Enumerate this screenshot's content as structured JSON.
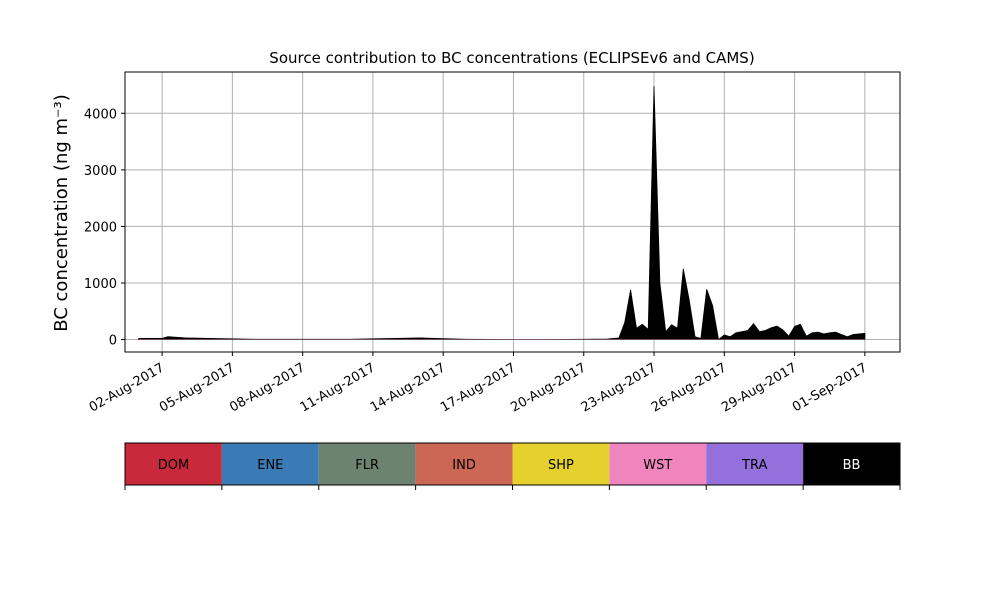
{
  "chart_data": {
    "type": "area",
    "title": "Source contribution to BC concentrations (ECLIPSEv6 and CAMS)",
    "ylabel": "BC concentration (ng m⁻³)",
    "xlabel": "",
    "ylim": [
      -220,
      4730
    ],
    "xlim": [
      "2017-07-31T10:00",
      "2017-09-02T12:00"
    ],
    "yticks": [
      0,
      1000,
      2000,
      3000,
      4000
    ],
    "ytick_labels": [
      "0",
      "1000",
      "2000",
      "3000",
      "4000"
    ],
    "xticks": [
      "2017-08-02",
      "2017-08-05",
      "2017-08-08",
      "2017-08-11",
      "2017-08-14",
      "2017-08-17",
      "2017-08-20",
      "2017-08-23",
      "2017-08-26",
      "2017-08-29",
      "2017-09-01"
    ],
    "xtick_labels": [
      "02-Aug-2017",
      "05-Aug-2017",
      "08-Aug-2017",
      "11-Aug-2017",
      "14-Aug-2017",
      "17-Aug-2017",
      "20-Aug-2017",
      "23-Aug-2017",
      "26-Aug-2017",
      "29-Aug-2017",
      "01-Sep-2017"
    ],
    "grid": true,
    "legend_position": "bottom",
    "series": [
      {
        "name": "BB",
        "color": "#000000",
        "x": [
          "2017-08-01T00:00",
          "2017-08-02T00:00",
          "2017-08-02T06:00",
          "2017-08-03T00:00",
          "2017-08-04T00:00",
          "2017-08-06T00:00",
          "2017-08-10T00:00",
          "2017-08-12T00:00",
          "2017-08-13T00:00",
          "2017-08-14T00:00",
          "2017-08-15T00:00",
          "2017-08-17T00:00",
          "2017-08-18T00:00",
          "2017-08-20T00:00",
          "2017-08-21T00:00",
          "2017-08-21T12:00",
          "2017-08-21T18:00",
          "2017-08-22T00:00",
          "2017-08-22T06:00",
          "2017-08-22T12:00",
          "2017-08-22T18:00",
          "2017-08-23T00:00",
          "2017-08-23T06:00",
          "2017-08-23T12:00",
          "2017-08-23T18:00",
          "2017-08-24T00:00",
          "2017-08-24T06:00",
          "2017-08-24T12:00",
          "2017-08-24T18:00",
          "2017-08-25T00:00",
          "2017-08-25T06:00",
          "2017-08-25T12:00",
          "2017-08-25T18:00",
          "2017-08-26T00:00",
          "2017-08-26T06:00",
          "2017-08-26T12:00",
          "2017-08-26T18:00",
          "2017-08-27T00:00",
          "2017-08-27T06:00",
          "2017-08-27T12:00",
          "2017-08-27T18:00",
          "2017-08-28T00:00",
          "2017-08-28T06:00",
          "2017-08-28T12:00",
          "2017-08-28T18:00",
          "2017-08-29T00:00",
          "2017-08-29T06:00",
          "2017-08-29T12:00",
          "2017-08-29T18:00",
          "2017-08-30T00:00",
          "2017-08-30T06:00",
          "2017-08-30T12:00",
          "2017-08-30T18:00",
          "2017-08-31T00:00",
          "2017-08-31T06:00",
          "2017-08-31T12:00",
          "2017-08-31T18:00",
          "2017-09-01T00:00"
        ],
        "values": [
          20,
          20,
          50,
          30,
          20,
          5,
          5,
          20,
          30,
          15,
          5,
          0,
          0,
          5,
          10,
          30,
          300,
          880,
          200,
          270,
          180,
          4480,
          1000,
          140,
          260,
          200,
          1250,
          700,
          50,
          20,
          890,
          600,
          0,
          80,
          50,
          120,
          140,
          160,
          280,
          140,
          160,
          210,
          240,
          170,
          60,
          230,
          270,
          60,
          120,
          130,
          100,
          120,
          130,
          90,
          50,
          90,
          100,
          110
        ]
      }
    ]
  },
  "legend": {
    "items": [
      {
        "label": "DOM",
        "color": "#c82a3c"
      },
      {
        "label": "ENE",
        "color": "#3a7bb5"
      },
      {
        "label": "FLR",
        "color": "#6e8270"
      },
      {
        "label": "IND",
        "color": "#cc6655"
      },
      {
        "label": "SHP",
        "color": "#e6d02e"
      },
      {
        "label": "WST",
        "color": "#f085be"
      },
      {
        "label": "TRA",
        "color": "#9370db"
      },
      {
        "label": "BB",
        "color": "#000000",
        "text_color": "#ffffff"
      }
    ]
  }
}
